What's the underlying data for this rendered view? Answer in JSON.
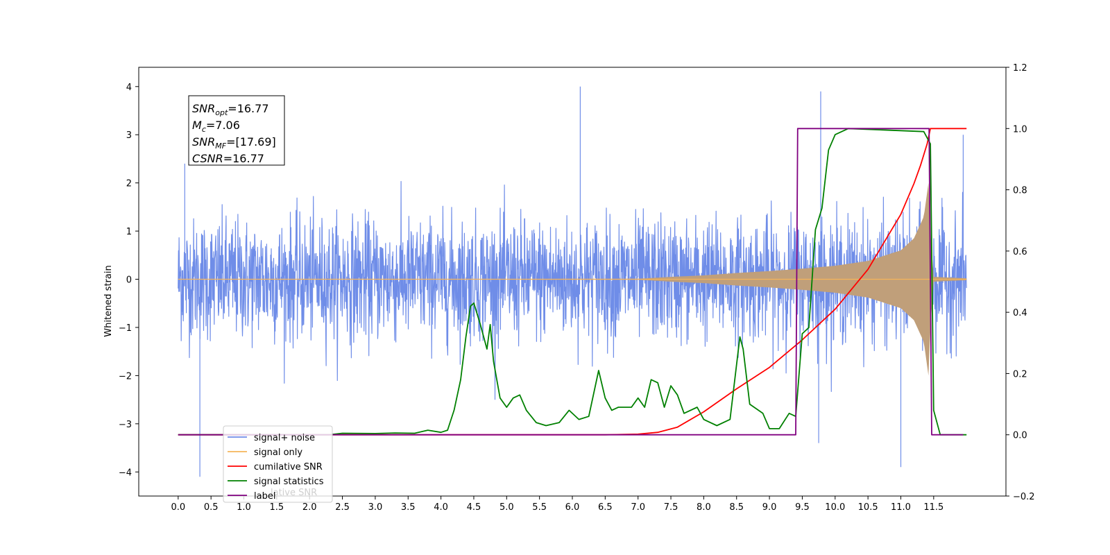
{
  "chart_data": {
    "type": "line",
    "ylabel": "Whitened strain",
    "xlim": [
      -0.6,
      12.6
    ],
    "ylim_left": [
      -4.5,
      4.4
    ],
    "ylim_right": [
      -0.2,
      1.2
    ],
    "x_ticks": [
      0.0,
      0.5,
      1.0,
      1.5,
      2.0,
      2.5,
      3.0,
      3.5,
      4.0,
      4.5,
      5.0,
      5.5,
      6.0,
      6.5,
      7.0,
      7.5,
      8.0,
      8.5,
      9.0,
      9.5,
      10.0,
      10.5,
      11.0,
      11.5
    ],
    "x_tick_labels": [
      "0.0",
      "0.5",
      "1.0",
      "1.5",
      "2.0",
      "2.5",
      "3.0",
      "3.5",
      "4.0",
      "4.5",
      "5.0",
      "5.5",
      "6.0",
      "6.5",
      "7.0",
      "7.5",
      "8.0",
      "8.5",
      "9.0",
      "9.5",
      "10.0",
      "10.5",
      "11.0",
      "11.5"
    ],
    "y_left_ticks": [
      -4,
      -3,
      -2,
      -1,
      0,
      1,
      2,
      3,
      4
    ],
    "y_left_tick_labels": [
      "−4",
      "−3",
      "−2",
      "−1",
      "0",
      "1",
      "2",
      "3",
      "4"
    ],
    "y_right_ticks": [
      -0.2,
      0.0,
      0.2,
      0.4,
      0.6,
      0.8,
      1.0,
      1.2
    ],
    "y_right_tick_labels": [
      "−0.2",
      "0.0",
      "0.2",
      "0.4",
      "0.6",
      "0.8",
      "1.0",
      "1.2"
    ],
    "annotation": {
      "lines": [
        {
          "var": "SNR",
          "sub": "opt",
          "value": "=16.77"
        },
        {
          "var": "M",
          "sub": "c",
          "value": "=7.06"
        },
        {
          "var": "SNR",
          "sub": "MF",
          "value": "=[17.69]"
        },
        {
          "var": "CSNR",
          "sub": "",
          "value": "=16.77"
        }
      ]
    },
    "legend": {
      "position": "lower-left",
      "entries": [
        "signal+ noise",
        "signal only",
        "cumilative SNR",
        "signal statistics",
        "label"
      ],
      "ghost_text": "lative SNR"
    },
    "colors": {
      "signal_noise": "#6f8de8",
      "signal_only": "#f5b45a",
      "cumulative": "#ff0000",
      "statistics": "#008000",
      "label": "#800080",
      "chirp_fill": "#c09f7a"
    },
    "series": [
      {
        "name": "signal+ noise",
        "axis": "left",
        "description": "noise band, approx amplitude envelope",
        "x_range": [
          0.0,
          12.0
        ],
        "typical_band": [
          -2.0,
          2.0
        ],
        "peaks": [
          [
            0.1,
            2.4
          ],
          [
            0.33,
            -4.1
          ],
          [
            6.12,
            4.0
          ],
          [
            9.78,
            3.9
          ],
          [
            9.75,
            -3.4
          ],
          [
            11.0,
            -3.9
          ],
          [
            11.95,
            3.0
          ]
        ]
      },
      {
        "name": "signal only",
        "axis": "left",
        "description": "chirp envelope amplitude vs time",
        "envelope": [
          [
            0.0,
            0.0
          ],
          [
            7.0,
            0.01
          ],
          [
            7.5,
            0.05
          ],
          [
            8.0,
            0.08
          ],
          [
            8.5,
            0.13
          ],
          [
            9.0,
            0.17
          ],
          [
            9.5,
            0.22
          ],
          [
            10.0,
            0.28
          ],
          [
            10.5,
            0.38
          ],
          [
            11.0,
            0.6
          ],
          [
            11.2,
            0.85
          ],
          [
            11.35,
            1.3
          ],
          [
            11.42,
            2.0
          ],
          [
            11.45,
            1.0
          ],
          [
            11.5,
            0.05
          ],
          [
            12.0,
            0.02
          ]
        ]
      },
      {
        "name": "cumilative SNR",
        "axis": "right",
        "points": [
          [
            0.0,
            0.0
          ],
          [
            6.5,
            0.0
          ],
          [
            7.0,
            0.002
          ],
          [
            7.3,
            0.008
          ],
          [
            7.6,
            0.025
          ],
          [
            8.0,
            0.075
          ],
          [
            8.5,
            0.15
          ],
          [
            9.0,
            0.22
          ],
          [
            9.5,
            0.31
          ],
          [
            10.0,
            0.41
          ],
          [
            10.5,
            0.54
          ],
          [
            11.0,
            0.72
          ],
          [
            11.2,
            0.82
          ],
          [
            11.3,
            0.88
          ],
          [
            11.4,
            0.95
          ],
          [
            11.45,
            1.0
          ],
          [
            12.0,
            1.0
          ]
        ]
      },
      {
        "name": "signal statistics",
        "axis": "right",
        "points": [
          [
            0.0,
            0.0
          ],
          [
            2.3,
            0.0
          ],
          [
            2.5,
            0.005
          ],
          [
            3.0,
            0.004
          ],
          [
            3.3,
            0.006
          ],
          [
            3.6,
            0.005
          ],
          [
            3.8,
            0.015
          ],
          [
            4.0,
            0.008
          ],
          [
            4.1,
            0.015
          ],
          [
            4.2,
            0.08
          ],
          [
            4.3,
            0.18
          ],
          [
            4.38,
            0.32
          ],
          [
            4.45,
            0.42
          ],
          [
            4.5,
            0.43
          ],
          [
            4.6,
            0.36
          ],
          [
            4.7,
            0.28
          ],
          [
            4.75,
            0.36
          ],
          [
            4.8,
            0.24
          ],
          [
            4.9,
            0.12
          ],
          [
            5.0,
            0.09
          ],
          [
            5.1,
            0.12
          ],
          [
            5.2,
            0.13
          ],
          [
            5.3,
            0.08
          ],
          [
            5.45,
            0.04
          ],
          [
            5.6,
            0.03
          ],
          [
            5.8,
            0.04
          ],
          [
            5.95,
            0.08
          ],
          [
            6.1,
            0.05
          ],
          [
            6.25,
            0.06
          ],
          [
            6.4,
            0.21
          ],
          [
            6.5,
            0.12
          ],
          [
            6.6,
            0.08
          ],
          [
            6.7,
            0.09
          ],
          [
            6.9,
            0.09
          ],
          [
            7.0,
            0.12
          ],
          [
            7.1,
            0.09
          ],
          [
            7.2,
            0.18
          ],
          [
            7.3,
            0.17
          ],
          [
            7.4,
            0.09
          ],
          [
            7.5,
            0.16
          ],
          [
            7.6,
            0.13
          ],
          [
            7.7,
            0.07
          ],
          [
            7.9,
            0.09
          ],
          [
            8.0,
            0.05
          ],
          [
            8.2,
            0.03
          ],
          [
            8.4,
            0.05
          ],
          [
            8.55,
            0.32
          ],
          [
            8.6,
            0.28
          ],
          [
            8.7,
            0.1
          ],
          [
            8.9,
            0.07
          ],
          [
            9.0,
            0.02
          ],
          [
            9.15,
            0.02
          ],
          [
            9.3,
            0.07
          ],
          [
            9.4,
            0.06
          ],
          [
            9.5,
            0.33
          ],
          [
            9.6,
            0.35
          ],
          [
            9.7,
            0.67
          ],
          [
            9.8,
            0.74
          ],
          [
            9.9,
            0.93
          ],
          [
            10.0,
            0.98
          ],
          [
            10.2,
            1.0
          ],
          [
            11.35,
            0.99
          ],
          [
            11.45,
            0.95
          ],
          [
            11.5,
            0.08
          ],
          [
            11.6,
            0.0
          ],
          [
            12.0,
            0.0
          ]
        ]
      },
      {
        "name": "label",
        "axis": "right",
        "points": [
          [
            0.0,
            0.0
          ],
          [
            9.4,
            0.0
          ],
          [
            9.43,
            1.0
          ],
          [
            11.43,
            1.0
          ],
          [
            11.47,
            0.0
          ],
          [
            11.95,
            0.0
          ]
        ]
      }
    ]
  }
}
